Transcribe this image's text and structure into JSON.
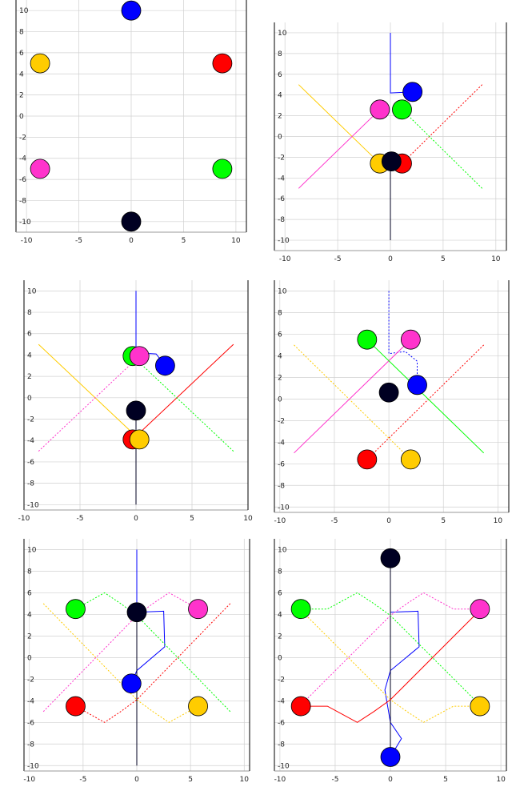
{
  "figure": {
    "layout": "3x2 grid"
  },
  "colors": {
    "red": "#ff0000",
    "green": "#00ff00",
    "blue": "#0000ff",
    "magenta": "#ff33cc",
    "yellow": "#ffcc00",
    "black": "#000022",
    "grid": "#d0d0d0",
    "axis": "#000000"
  },
  "chart_data": [
    {
      "type": "scatter",
      "title": "",
      "xlabel": "",
      "ylabel": "",
      "xlim": [
        -11,
        11
      ],
      "ylim": [
        -11,
        11
      ],
      "xticks": [
        -10,
        -5,
        0,
        5,
        10
      ],
      "yticks": [
        -10,
        -8,
        -6,
        -4,
        -2,
        0,
        2,
        4,
        6,
        8,
        10
      ],
      "grid": true,
      "points": [
        {
          "color": "blue",
          "x": 0,
          "y": 10
        },
        {
          "color": "yellow",
          "x": -8.7,
          "y": 5
        },
        {
          "color": "red",
          "x": 8.7,
          "y": 5
        },
        {
          "color": "magenta",
          "x": -8.7,
          "y": -5
        },
        {
          "color": "green",
          "x": 8.7,
          "y": -5
        },
        {
          "color": "black",
          "x": 0,
          "y": -10
        }
      ],
      "trails": []
    },
    {
      "type": "scatter",
      "title": "",
      "xlabel": "",
      "ylabel": "",
      "xlim": [
        -11,
        11
      ],
      "ylim": [
        -11,
        11
      ],
      "xticks": [
        -10,
        -5,
        0,
        5,
        10
      ],
      "yticks": [
        -10,
        -8,
        -6,
        -4,
        -2,
        0,
        2,
        4,
        6,
        8,
        10
      ],
      "grid": true,
      "points": [
        {
          "color": "blue",
          "x": 2.1,
          "y": 4.3
        },
        {
          "color": "magenta",
          "x": -1.0,
          "y": 2.6
        },
        {
          "color": "green",
          "x": 1.1,
          "y": 2.6
        },
        {
          "color": "yellow",
          "x": -1.0,
          "y": -2.6
        },
        {
          "color": "red",
          "x": 1.1,
          "y": -2.6
        },
        {
          "color": "black",
          "x": 0.1,
          "y": -2.4
        }
      ],
      "trails": [
        {
          "color": "blue",
          "dash": false,
          "points": [
            [
              0,
              10
            ],
            [
              0,
              4.2
            ],
            [
              2.1,
              4.3
            ]
          ]
        },
        {
          "color": "black",
          "dash": false,
          "points": [
            [
              0,
              -10
            ],
            [
              0,
              -2.4
            ]
          ]
        },
        {
          "color": "yellow",
          "dash": false,
          "points": [
            [
              -8.7,
              5
            ],
            [
              -1.0,
              -2.6
            ]
          ]
        },
        {
          "color": "red",
          "dash": true,
          "points": [
            [
              8.7,
              5
            ],
            [
              1.1,
              -2.6
            ]
          ]
        },
        {
          "color": "magenta",
          "dash": false,
          "points": [
            [
              -8.7,
              -5
            ],
            [
              -1.0,
              2.6
            ]
          ]
        },
        {
          "color": "green",
          "dash": true,
          "points": [
            [
              8.7,
              -5
            ],
            [
              1.1,
              2.6
            ]
          ]
        }
      ]
    },
    {
      "type": "scatter",
      "title": "",
      "xlabel": "",
      "ylabel": "",
      "xlim": [
        -10,
        10
      ],
      "ylim": [
        -10.5,
        11
      ],
      "xticks": [
        -10,
        -5,
        0,
        5,
        10
      ],
      "yticks": [
        -10,
        -8,
        -6,
        -4,
        -2,
        0,
        2,
        4,
        6,
        8,
        10
      ],
      "grid": true,
      "points": [
        {
          "color": "green",
          "x": -0.3,
          "y": 3.9
        },
        {
          "color": "magenta",
          "x": 0.3,
          "y": 3.9
        },
        {
          "color": "blue",
          "x": 2.6,
          "y": 3.0
        },
        {
          "color": "black",
          "x": 0,
          "y": -1.2
        },
        {
          "color": "red",
          "x": -0.3,
          "y": -3.9
        },
        {
          "color": "yellow",
          "x": 0.3,
          "y": -3.9
        }
      ],
      "trails": [
        {
          "color": "blue",
          "dash": false,
          "points": [
            [
              0,
              10
            ],
            [
              0,
              4.2
            ],
            [
              1.8,
              4.1
            ],
            [
              2.6,
              3.0
            ]
          ]
        },
        {
          "color": "black",
          "dash": false,
          "points": [
            [
              0,
              -10
            ],
            [
              0,
              -1.2
            ]
          ]
        },
        {
          "color": "yellow",
          "dash": false,
          "points": [
            [
              -8.7,
              5
            ],
            [
              0.3,
              -3.9
            ]
          ]
        },
        {
          "color": "red",
          "dash": false,
          "points": [
            [
              8.7,
              5
            ],
            [
              -0.3,
              -3.9
            ]
          ]
        },
        {
          "color": "magenta",
          "dash": true,
          "points": [
            [
              -8.7,
              -5
            ],
            [
              0.3,
              3.9
            ]
          ]
        },
        {
          "color": "green",
          "dash": true,
          "points": [
            [
              8.7,
              -5
            ],
            [
              -0.3,
              3.9
            ]
          ]
        }
      ]
    },
    {
      "type": "scatter",
      "title": "",
      "xlabel": "",
      "ylabel": "",
      "xlim": [
        -10.5,
        11
      ],
      "ylim": [
        -10.5,
        11
      ],
      "xticks": [
        -10,
        -5,
        0,
        5,
        10
      ],
      "yticks": [
        -10,
        -8,
        -6,
        -4,
        -2,
        0,
        2,
        4,
        6,
        8,
        10
      ],
      "grid": true,
      "points": [
        {
          "color": "green",
          "x": -2.0,
          "y": 5.5
        },
        {
          "color": "magenta",
          "x": 2.0,
          "y": 5.5
        },
        {
          "color": "blue",
          "x": 2.6,
          "y": 1.3
        },
        {
          "color": "black",
          "x": 0,
          "y": 0.6
        },
        {
          "color": "red",
          "x": -2.0,
          "y": -5.6
        },
        {
          "color": "yellow",
          "x": 2.0,
          "y": -5.6
        }
      ],
      "trails": [
        {
          "color": "blue",
          "dash": true,
          "points": [
            [
              0,
              10
            ],
            [
              0,
              4.2
            ],
            [
              1.5,
              4.4
            ],
            [
              2.6,
              3.5
            ],
            [
              2.6,
              1.3
            ]
          ]
        },
        {
          "color": "yellow",
          "dash": true,
          "points": [
            [
              -8.7,
              5
            ],
            [
              2.0,
              -5.6
            ]
          ]
        },
        {
          "color": "red",
          "dash": true,
          "points": [
            [
              8.7,
              5
            ],
            [
              -2.0,
              -5.6
            ]
          ]
        },
        {
          "color": "magenta",
          "dash": false,
          "points": [
            [
              -8.7,
              -5
            ],
            [
              2.0,
              5.5
            ]
          ]
        },
        {
          "color": "green",
          "dash": false,
          "points": [
            [
              8.7,
              -5
            ],
            [
              -2.0,
              5.5
            ]
          ]
        }
      ]
    },
    {
      "type": "scatter",
      "title": "",
      "xlabel": "",
      "ylabel": "",
      "xlim": [
        -10.5,
        10.5
      ],
      "ylim": [
        -10.5,
        11
      ],
      "xticks": [
        -10,
        -5,
        0,
        5,
        10
      ],
      "yticks": [
        -10,
        -8,
        -6,
        -4,
        -2,
        0,
        2,
        4,
        6,
        8,
        10
      ],
      "grid": true,
      "points": [
        {
          "color": "green",
          "x": -5.7,
          "y": 4.5
        },
        {
          "color": "magenta",
          "x": 5.7,
          "y": 4.5
        },
        {
          "color": "black",
          "x": 0,
          "y": 4.2
        },
        {
          "color": "blue",
          "x": -0.5,
          "y": -2.4
        },
        {
          "color": "red",
          "x": -5.7,
          "y": -4.5
        },
        {
          "color": "yellow",
          "x": 5.7,
          "y": -4.5
        }
      ],
      "trails": [
        {
          "color": "blue",
          "dash": false,
          "points": [
            [
              0,
              10
            ],
            [
              0,
              4.2
            ],
            [
              2.5,
              4.3
            ],
            [
              2.6,
              1.0
            ],
            [
              0,
              -1.2
            ],
            [
              -0.5,
              -2.4
            ]
          ]
        },
        {
          "color": "black",
          "dash": false,
          "points": [
            [
              0,
              -10
            ],
            [
              0,
              4.2
            ]
          ]
        },
        {
          "color": "yellow",
          "dash": true,
          "points": [
            [
              -8.7,
              5
            ],
            [
              0,
              -3.9
            ],
            [
              1.5,
              -5.0
            ],
            [
              3.0,
              -6.0
            ],
            [
              5.7,
              -4.5
            ]
          ]
        },
        {
          "color": "red",
          "dash": true,
          "points": [
            [
              8.7,
              5
            ],
            [
              0,
              -3.9
            ],
            [
              -1.5,
              -5.0
            ],
            [
              -3.0,
              -6.0
            ],
            [
              -5.7,
              -4.5
            ]
          ]
        },
        {
          "color": "magenta",
          "dash": true,
          "points": [
            [
              -8.7,
              -5
            ],
            [
              0,
              3.9
            ],
            [
              1.5,
              5.0
            ],
            [
              3.0,
              6.0
            ],
            [
              5.7,
              4.5
            ]
          ]
        },
        {
          "color": "green",
          "dash": true,
          "points": [
            [
              8.7,
              -5
            ],
            [
              0,
              3.9
            ],
            [
              -1.5,
              5.0
            ],
            [
              -3.0,
              6.0
            ],
            [
              -5.7,
              4.5
            ]
          ]
        }
      ]
    },
    {
      "type": "scatter",
      "title": "",
      "xlabel": "",
      "ylabel": "",
      "xlim": [
        -10.5,
        10.5
      ],
      "ylim": [
        -10.5,
        11
      ],
      "xticks": [
        -10,
        -5,
        0,
        5,
        10
      ],
      "yticks": [
        -10,
        -8,
        -6,
        -4,
        -2,
        0,
        2,
        4,
        6,
        8,
        10
      ],
      "grid": true,
      "points": [
        {
          "color": "black",
          "x": 0,
          "y": 9.2
        },
        {
          "color": "green",
          "x": -8.1,
          "y": 4.5
        },
        {
          "color": "magenta",
          "x": 8.1,
          "y": 4.5
        },
        {
          "color": "red",
          "x": -8.1,
          "y": -4.5
        },
        {
          "color": "yellow",
          "x": 8.1,
          "y": -4.5
        },
        {
          "color": "blue",
          "x": 0,
          "y": -9.2
        }
      ],
      "trails": [
        {
          "color": "blue",
          "dash": false,
          "points": [
            [
              0,
              10
            ],
            [
              0,
              4.2
            ],
            [
              2.5,
              4.3
            ],
            [
              2.6,
              1.0
            ],
            [
              0,
              -1.2
            ],
            [
              -0.5,
              -3.0
            ],
            [
              0,
              -6.0
            ],
            [
              1.0,
              -7.5
            ],
            [
              0,
              -9.2
            ]
          ]
        },
        {
          "color": "black",
          "dash": false,
          "points": [
            [
              0,
              -10
            ],
            [
              0,
              9.2
            ]
          ]
        },
        {
          "color": "yellow",
          "dash": true,
          "points": [
            [
              -8.7,
              5
            ],
            [
              0,
              -3.9
            ],
            [
              1.5,
              -5.0
            ],
            [
              3.0,
              -6.0
            ],
            [
              5.7,
              -4.5
            ],
            [
              8.1,
              -4.5
            ]
          ]
        },
        {
          "color": "red",
          "dash": false,
          "points": [
            [
              8.7,
              5
            ],
            [
              0,
              -3.9
            ],
            [
              -1.5,
              -5.0
            ],
            [
              -3.0,
              -6.0
            ],
            [
              -5.7,
              -4.5
            ],
            [
              -8.1,
              -4.5
            ]
          ]
        },
        {
          "color": "magenta",
          "dash": true,
          "points": [
            [
              -8.7,
              -5
            ],
            [
              0,
              3.9
            ],
            [
              1.5,
              5.0
            ],
            [
              3.0,
              6.0
            ],
            [
              5.7,
              4.5
            ],
            [
              8.1,
              4.5
            ]
          ]
        },
        {
          "color": "green",
          "dash": true,
          "points": [
            [
              8.7,
              -5
            ],
            [
              0,
              3.9
            ],
            [
              -1.5,
              5.0
            ],
            [
              -3.0,
              6.0
            ],
            [
              -5.7,
              4.5
            ],
            [
              -8.1,
              4.5
            ]
          ]
        }
      ]
    }
  ]
}
